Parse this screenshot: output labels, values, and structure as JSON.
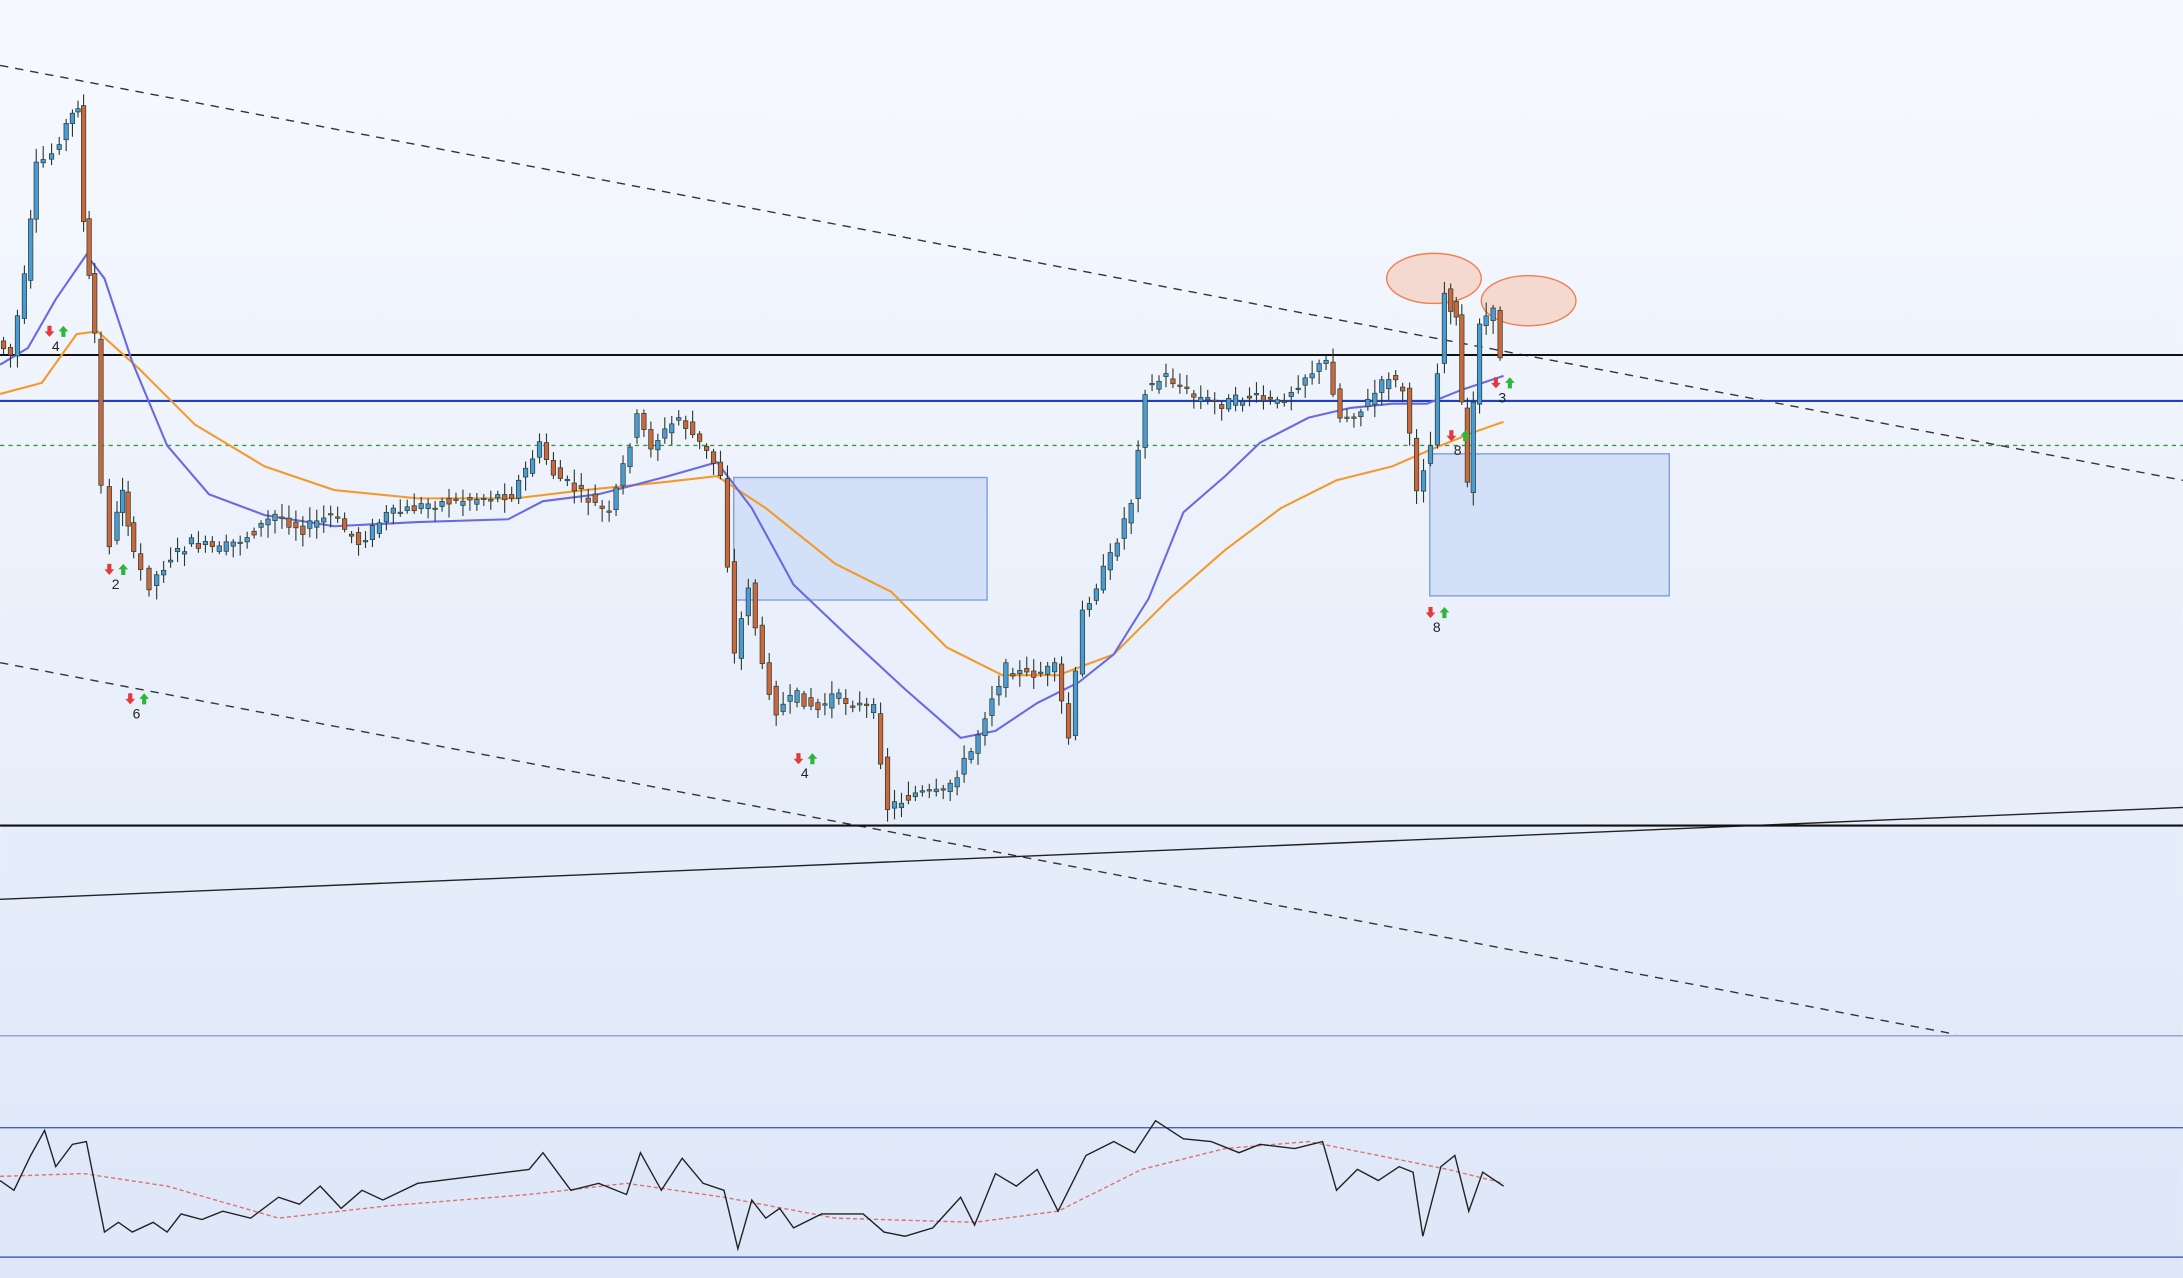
{
  "signal_labels": [
    {
      "label": "4"
    },
    {
      "label": "2"
    },
    {
      "label": "6"
    },
    {
      "label": "4"
    },
    {
      "label": "8"
    },
    {
      "label": "8"
    },
    {
      "label": "3"
    }
  ]
}
